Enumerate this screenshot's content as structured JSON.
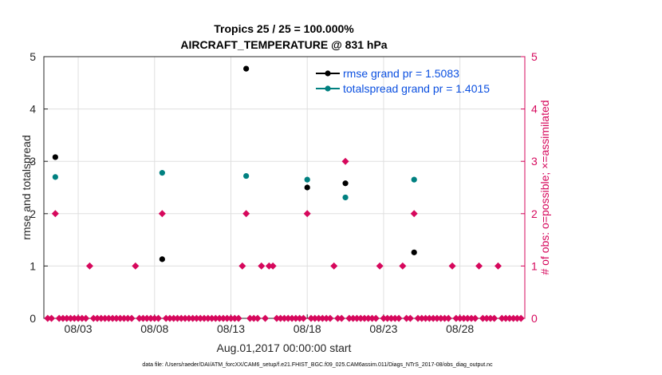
{
  "colors": {
    "rmse": "#000000",
    "totalspread": "#008080",
    "obs": "#d6085c",
    "legend_text": "#0a4fe0",
    "grid": "#dfdfdf",
    "axis": "#262626"
  },
  "chart_data": {
    "type": "scatter",
    "title_line1": "Tropics 25 / 25 = 100.000%",
    "title_line2": "AIRCRAFT_TEMPERATURE @ 831 hPa",
    "xlabel": "Aug.01,2017 00:00:00 start",
    "ylabel_left": "rmse and totalspread",
    "ylabel_right": "# of obs: o=possible; ×=assimilated",
    "footnote": "data file: /Users/raeder/DAI/ATM_forcXX/CAM6_setup/f.e21.FHIST_BGC.f09_025.CAM6assim.011/Diags_NTrS_2017-08/obs_diag_output.nc",
    "xlim": [
      0.75,
      32.25
    ],
    "ylim_left": [
      0,
      5
    ],
    "ylim_right": [
      0,
      5
    ],
    "x_ticks": [
      {
        "value": 3,
        "label": "08/03"
      },
      {
        "value": 8,
        "label": "08/08"
      },
      {
        "value": 13,
        "label": "08/13"
      },
      {
        "value": 18,
        "label": "08/18"
      },
      {
        "value": 23,
        "label": "08/23"
      },
      {
        "value": 28,
        "label": "08/28"
      }
    ],
    "y_ticks_left": [
      "0",
      "1",
      "2",
      "3",
      "4",
      "5"
    ],
    "y_ticks_right": [
      "0",
      "1",
      "2",
      "3",
      "4",
      "5"
    ],
    "legend": [
      {
        "name": "rmse",
        "label": "rmse grand pr = 1.5083"
      },
      {
        "name": "totalspread",
        "label": "totalspread grand pr = 1.4015"
      }
    ],
    "series": [
      {
        "name": "rmse",
        "points": [
          [
            1.5,
            3.08
          ],
          [
            8.5,
            1.13
          ],
          [
            14.0,
            4.77
          ],
          [
            18.0,
            2.5
          ],
          [
            20.5,
            2.58
          ],
          [
            25.0,
            1.26
          ]
        ]
      },
      {
        "name": "totalspread",
        "points": [
          [
            1.5,
            2.7
          ],
          [
            8.5,
            2.78
          ],
          [
            14.0,
            2.72
          ],
          [
            18.0,
            2.65
          ],
          [
            20.5,
            2.31
          ],
          [
            25.0,
            2.65
          ]
        ]
      },
      {
        "name": "obs_count",
        "x_start": 1.0,
        "x_step": 0.25,
        "nonzero": {
          "1.5": 2,
          "3.75": 1,
          "6.75": 1,
          "8.5": 2,
          "13.75": 1,
          "14.0": 2,
          "14.5": 0,
          "15.0": 1,
          "15.5": 1,
          "15.75": 1,
          "18.0": 2,
          "19.75": 1,
          "20.5": 3,
          "22.75": 1,
          "24.25": 1,
          "25.0": 2,
          "27.5": 1,
          "29.25": 1,
          "30.5": 1
        },
        "x_end": 32.0
      }
    ]
  }
}
